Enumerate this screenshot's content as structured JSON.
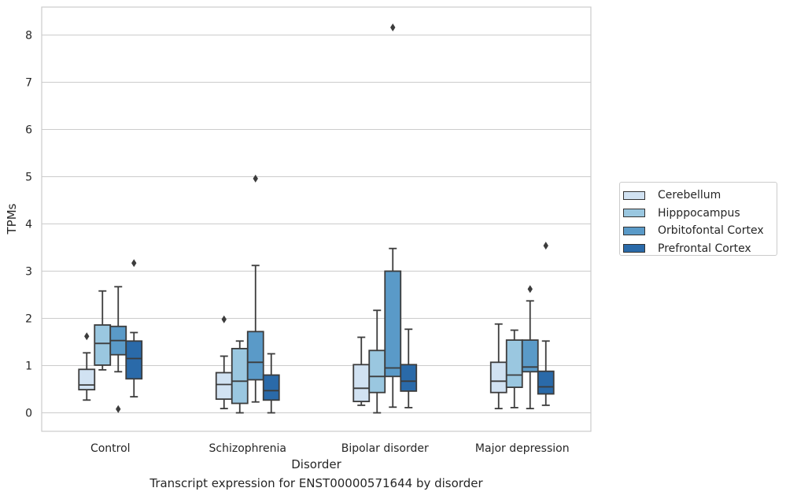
{
  "chart_data": {
    "type": "boxplot",
    "xlabel": "Disorder",
    "ylabel": "TPMs",
    "caption": "Transcript expression for ENST00000571644 by disorder",
    "ylim": [
      -0.4,
      8.6
    ],
    "yticks": [
      0,
      1,
      2,
      3,
      4,
      5,
      6,
      7,
      8
    ],
    "grid": "horizontal",
    "legend_position": "right",
    "categories": [
      "Control",
      "Schizophrenia",
      "Bipolar disorder",
      "Major depression"
    ],
    "series": [
      {
        "name": "Cerebellum",
        "color": "#d1e2f2",
        "boxes": [
          {
            "whislo": 0.27,
            "q1": 0.49,
            "med": 0.59,
            "q3": 0.92,
            "whishi": 1.27,
            "fliers": [
              1.62
            ]
          },
          {
            "whislo": 0.09,
            "q1": 0.29,
            "med": 0.6,
            "q3": 0.85,
            "whishi": 1.2,
            "fliers": [
              1.98
            ]
          },
          {
            "whislo": 0.16,
            "q1": 0.24,
            "med": 0.52,
            "q3": 1.02,
            "whishi": 1.6,
            "fliers": []
          },
          {
            "whislo": 0.09,
            "q1": 0.43,
            "med": 0.67,
            "q3": 1.07,
            "whishi": 1.88,
            "fliers": []
          }
        ]
      },
      {
        "name": "Hipppocampus",
        "color": "#9ac7e0",
        "boxes": [
          {
            "whislo": 0.91,
            "q1": 1.01,
            "med": 1.47,
            "q3": 1.86,
            "whishi": 2.58,
            "fliers": []
          },
          {
            "whislo": 0.0,
            "q1": 0.2,
            "med": 0.67,
            "q3": 1.36,
            "whishi": 1.52,
            "fliers": []
          },
          {
            "whislo": 0.0,
            "q1": 0.43,
            "med": 0.77,
            "q3": 1.32,
            "whishi": 2.17,
            "fliers": []
          },
          {
            "whislo": 0.11,
            "q1": 0.54,
            "med": 0.8,
            "q3": 1.54,
            "whishi": 1.75,
            "fliers": []
          }
        ]
      },
      {
        "name": "Orbitofontal Cortex",
        "color": "#5a9ac8",
        "boxes": [
          {
            "whislo": 0.87,
            "q1": 1.23,
            "med": 1.53,
            "q3": 1.83,
            "whishi": 2.67,
            "fliers": [
              0.08
            ]
          },
          {
            "whislo": 0.23,
            "q1": 0.7,
            "med": 1.07,
            "q3": 1.72,
            "whishi": 3.12,
            "fliers": [
              4.96
            ]
          },
          {
            "whislo": 0.12,
            "q1": 0.77,
            "med": 0.95,
            "q3": 3.0,
            "whishi": 3.48,
            "fliers": [
              8.16
            ]
          },
          {
            "whislo": 0.09,
            "q1": 0.87,
            "med": 0.97,
            "q3": 1.54,
            "whishi": 2.37,
            "fliers": [
              2.62
            ]
          }
        ]
      },
      {
        "name": "Prefrontal Cortex",
        "color": "#2a6aa9",
        "boxes": [
          {
            "whislo": 0.34,
            "q1": 0.72,
            "med": 1.15,
            "q3": 1.52,
            "whishi": 1.7,
            "fliers": [
              3.17
            ]
          },
          {
            "whislo": 0.0,
            "q1": 0.27,
            "med": 0.47,
            "q3": 0.8,
            "whishi": 1.25,
            "fliers": []
          },
          {
            "whislo": 0.11,
            "q1": 0.46,
            "med": 0.67,
            "q3": 1.02,
            "whishi": 1.77,
            "fliers": []
          },
          {
            "whislo": 0.16,
            "q1": 0.4,
            "med": 0.55,
            "q3": 0.88,
            "whishi": 1.52,
            "fliers": [
              3.54
            ]
          }
        ]
      }
    ]
  }
}
